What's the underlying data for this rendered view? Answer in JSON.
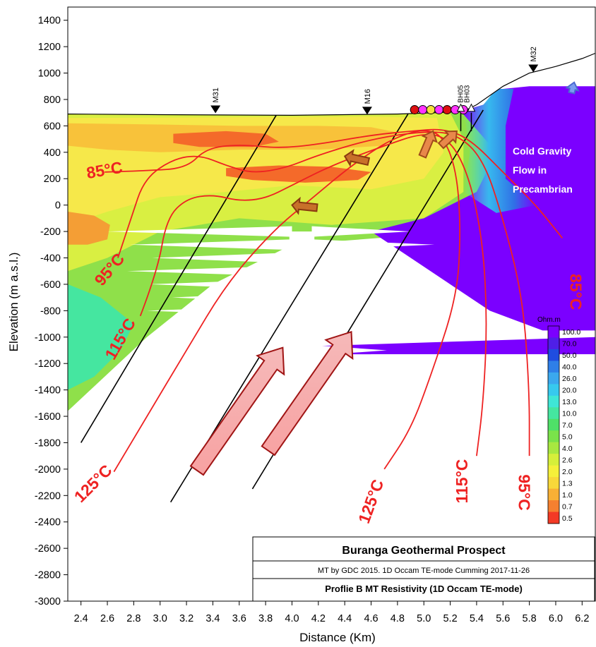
{
  "chart_data": {
    "type": "heatmap",
    "xlabel": "Distance (Km)",
    "ylabel": "Elevation (m a.s.l.)",
    "xlim": [
      2.3,
      6.3
    ],
    "ylim": [
      -3000,
      1500
    ],
    "x_ticks": [
      2.4,
      2.6,
      2.8,
      3.0,
      3.2,
      3.4,
      3.6,
      3.8,
      4.0,
      4.2,
      4.4,
      4.6,
      4.8,
      5.0,
      5.2,
      5.4,
      5.6,
      5.8,
      6.0,
      6.2
    ],
    "x_tick_labels": [
      "2.4",
      "2.6",
      "2.8",
      "3.0",
      "3.2",
      "3.4",
      "3.6",
      "3.8",
      "4.0",
      "4.2",
      "4.4",
      "4.6",
      "4.8",
      "5.0",
      "5.2",
      "5.4",
      "5.6",
      "5.8",
      "6.0",
      "6.2"
    ],
    "y_ticks": [
      1400,
      1200,
      1000,
      800,
      600,
      400,
      200,
      0,
      -200,
      -400,
      -600,
      -800,
      -1000,
      -1200,
      -1400,
      -1600,
      -1800,
      -2000,
      -2200,
      -2400,
      -2600,
      -2800,
      -3000
    ],
    "y_tick_labels": [
      "1400",
      "1200",
      "1000",
      "800",
      "600",
      "400",
      "200",
      "0",
      "-200",
      "-400",
      "-600",
      "-800",
      "-1000",
      "-1200",
      "-1400",
      "-1600",
      "-1800",
      "-2000",
      "-2200",
      "-2400",
      "-2600",
      "-2800",
      "-3000"
    ],
    "grid": false,
    "topography": [
      [
        2.3,
        690
      ],
      [
        3.0,
        685
      ],
      [
        4.0,
        680
      ],
      [
        4.8,
        690
      ],
      [
        5.1,
        700
      ],
      [
        5.3,
        710
      ],
      [
        5.4,
        760
      ],
      [
        5.6,
        900
      ],
      [
        5.8,
        1000
      ],
      [
        6.0,
        1050
      ],
      [
        6.2,
        1110
      ],
      [
        6.3,
        1150
      ]
    ],
    "stations": [
      {
        "name": "M31",
        "x": 3.42,
        "elev": 690
      },
      {
        "name": "M16",
        "x": 4.57,
        "elev": 680
      },
      {
        "name": "M32",
        "x": 5.83,
        "elev": 1000
      }
    ],
    "wells": [
      {
        "name": "BH05",
        "x": 5.28
      },
      {
        "name": "BH03",
        "x": 5.36
      }
    ],
    "faults": [
      {
        "x1": 2.4,
        "y1": -1800,
        "x2": 3.88,
        "y2": 680
      },
      {
        "x1": 3.08,
        "y1": -2250,
        "x2": 4.88,
        "y2": 690
      },
      {
        "x1": 3.7,
        "y1": -2150,
        "x2": 5.45,
        "y2": 720
      }
    ],
    "isotherms": [
      {
        "label": "85°C",
        "label_x": 2.45,
        "label_y": 200,
        "label_angle": -10,
        "points": [
          [
            2.58,
            250
          ],
          [
            2.9,
            260
          ],
          [
            3.2,
            280
          ],
          [
            3.35,
            430
          ],
          [
            3.6,
            460
          ],
          [
            3.9,
            430
          ],
          [
            4.2,
            460
          ],
          [
            4.6,
            530
          ],
          [
            4.9,
            560
          ],
          [
            5.15,
            580
          ],
          [
            5.35,
            500
          ],
          [
            5.6,
            250
          ],
          [
            5.85,
            0
          ],
          [
            6.05,
            -250
          ]
        ]
      },
      {
        "label": "85°C",
        "label_x": 6.11,
        "label_y": -520,
        "label_angle": 90,
        "points": []
      },
      {
        "label": "95°C",
        "label_x": 2.56,
        "label_y": -620,
        "label_angle": -50,
        "points": [
          [
            2.68,
            -400
          ],
          [
            2.78,
            -100
          ],
          [
            2.88,
            200
          ],
          [
            3.1,
            350
          ],
          [
            3.3,
            380
          ],
          [
            3.5,
            300
          ],
          [
            3.7,
            240
          ],
          [
            3.95,
            280
          ],
          [
            4.2,
            380
          ],
          [
            4.6,
            500
          ],
          [
            5.0,
            560
          ],
          [
            5.25,
            540
          ],
          [
            5.45,
            350
          ],
          [
            5.6,
            -100
          ],
          [
            5.75,
            -700
          ],
          [
            5.8,
            -1400
          ],
          [
            5.8,
            -1900
          ]
        ]
      },
      {
        "label": "95°C",
        "label_x": 5.72,
        "label_y": -2040,
        "label_angle": 90,
        "points": []
      },
      {
        "label": "115°C",
        "label_x": 2.65,
        "label_y": -1180,
        "label_angle": -60,
        "points": [
          [
            2.85,
            -840
          ],
          [
            2.98,
            -500
          ],
          [
            3.05,
            -100
          ],
          [
            3.2,
            50
          ],
          [
            3.4,
            80
          ],
          [
            3.6,
            30
          ],
          [
            3.8,
            50
          ],
          [
            4.0,
            150
          ],
          [
            4.3,
            300
          ],
          [
            4.7,
            450
          ],
          [
            5.0,
            550
          ],
          [
            5.2,
            500
          ],
          [
            5.35,
            200
          ],
          [
            5.45,
            -300
          ],
          [
            5.48,
            -900
          ],
          [
            5.45,
            -1500
          ],
          [
            5.4,
            -1900
          ]
        ]
      },
      {
        "label": "115°C",
        "label_x": 5.33,
        "label_y": -2260,
        "label_angle": -90,
        "points": []
      },
      {
        "label": "125°C",
        "label_x": 2.4,
        "label_y": -2260,
        "label_angle": -45,
        "points": [
          [
            2.65,
            -2020
          ],
          [
            2.9,
            -1600
          ],
          [
            3.2,
            -1100
          ],
          [
            3.5,
            -600
          ],
          [
            3.85,
            -200
          ],
          [
            4.15,
            50
          ],
          [
            4.45,
            300
          ],
          [
            4.75,
            500
          ],
          [
            5.0,
            580
          ],
          [
            5.15,
            520
          ],
          [
            5.25,
            250
          ],
          [
            5.28,
            -200
          ],
          [
            5.25,
            -700
          ],
          [
            5.05,
            -1300
          ],
          [
            4.9,
            -1700
          ],
          [
            4.7,
            -2000
          ]
        ]
      },
      {
        "label": "125°C",
        "label_x": 4.58,
        "label_y": -2420,
        "label_angle": -70,
        "points": []
      }
    ],
    "annotations": [
      "Cold Gravity",
      "Flow in",
      "Precambrian"
    ],
    "colorbar": {
      "unit": "Ohm.m",
      "labels": [
        "100.0",
        "70.0",
        "50.0",
        "40.0",
        "26.0",
        "20.0",
        "13.0",
        "10.0",
        "7.0",
        "5.0",
        "4.0",
        "2.6",
        "2.0",
        "1.3",
        "1.0",
        "0.7",
        "0.5"
      ],
      "colors": [
        "#7b00ff",
        "#4f1fe8",
        "#1f4de0",
        "#2f7fe8",
        "#3ba8ee",
        "#37c9ee",
        "#3fe6d6",
        "#45e6a0",
        "#4fe068",
        "#7ae24a",
        "#a8e840",
        "#d6ef3a",
        "#f5f03a",
        "#f8d83a",
        "#f8b035",
        "#f58030",
        "#f33a25"
      ]
    },
    "title_box": {
      "title": "Buranga Geothermal Prospect",
      "credit": "MT by GDC 2015.   1D Occam TE-mode Cumming 2017-11-26",
      "subtitle": "Proflie B MT Resistivity (1D Occam TE-mode)"
    }
  }
}
